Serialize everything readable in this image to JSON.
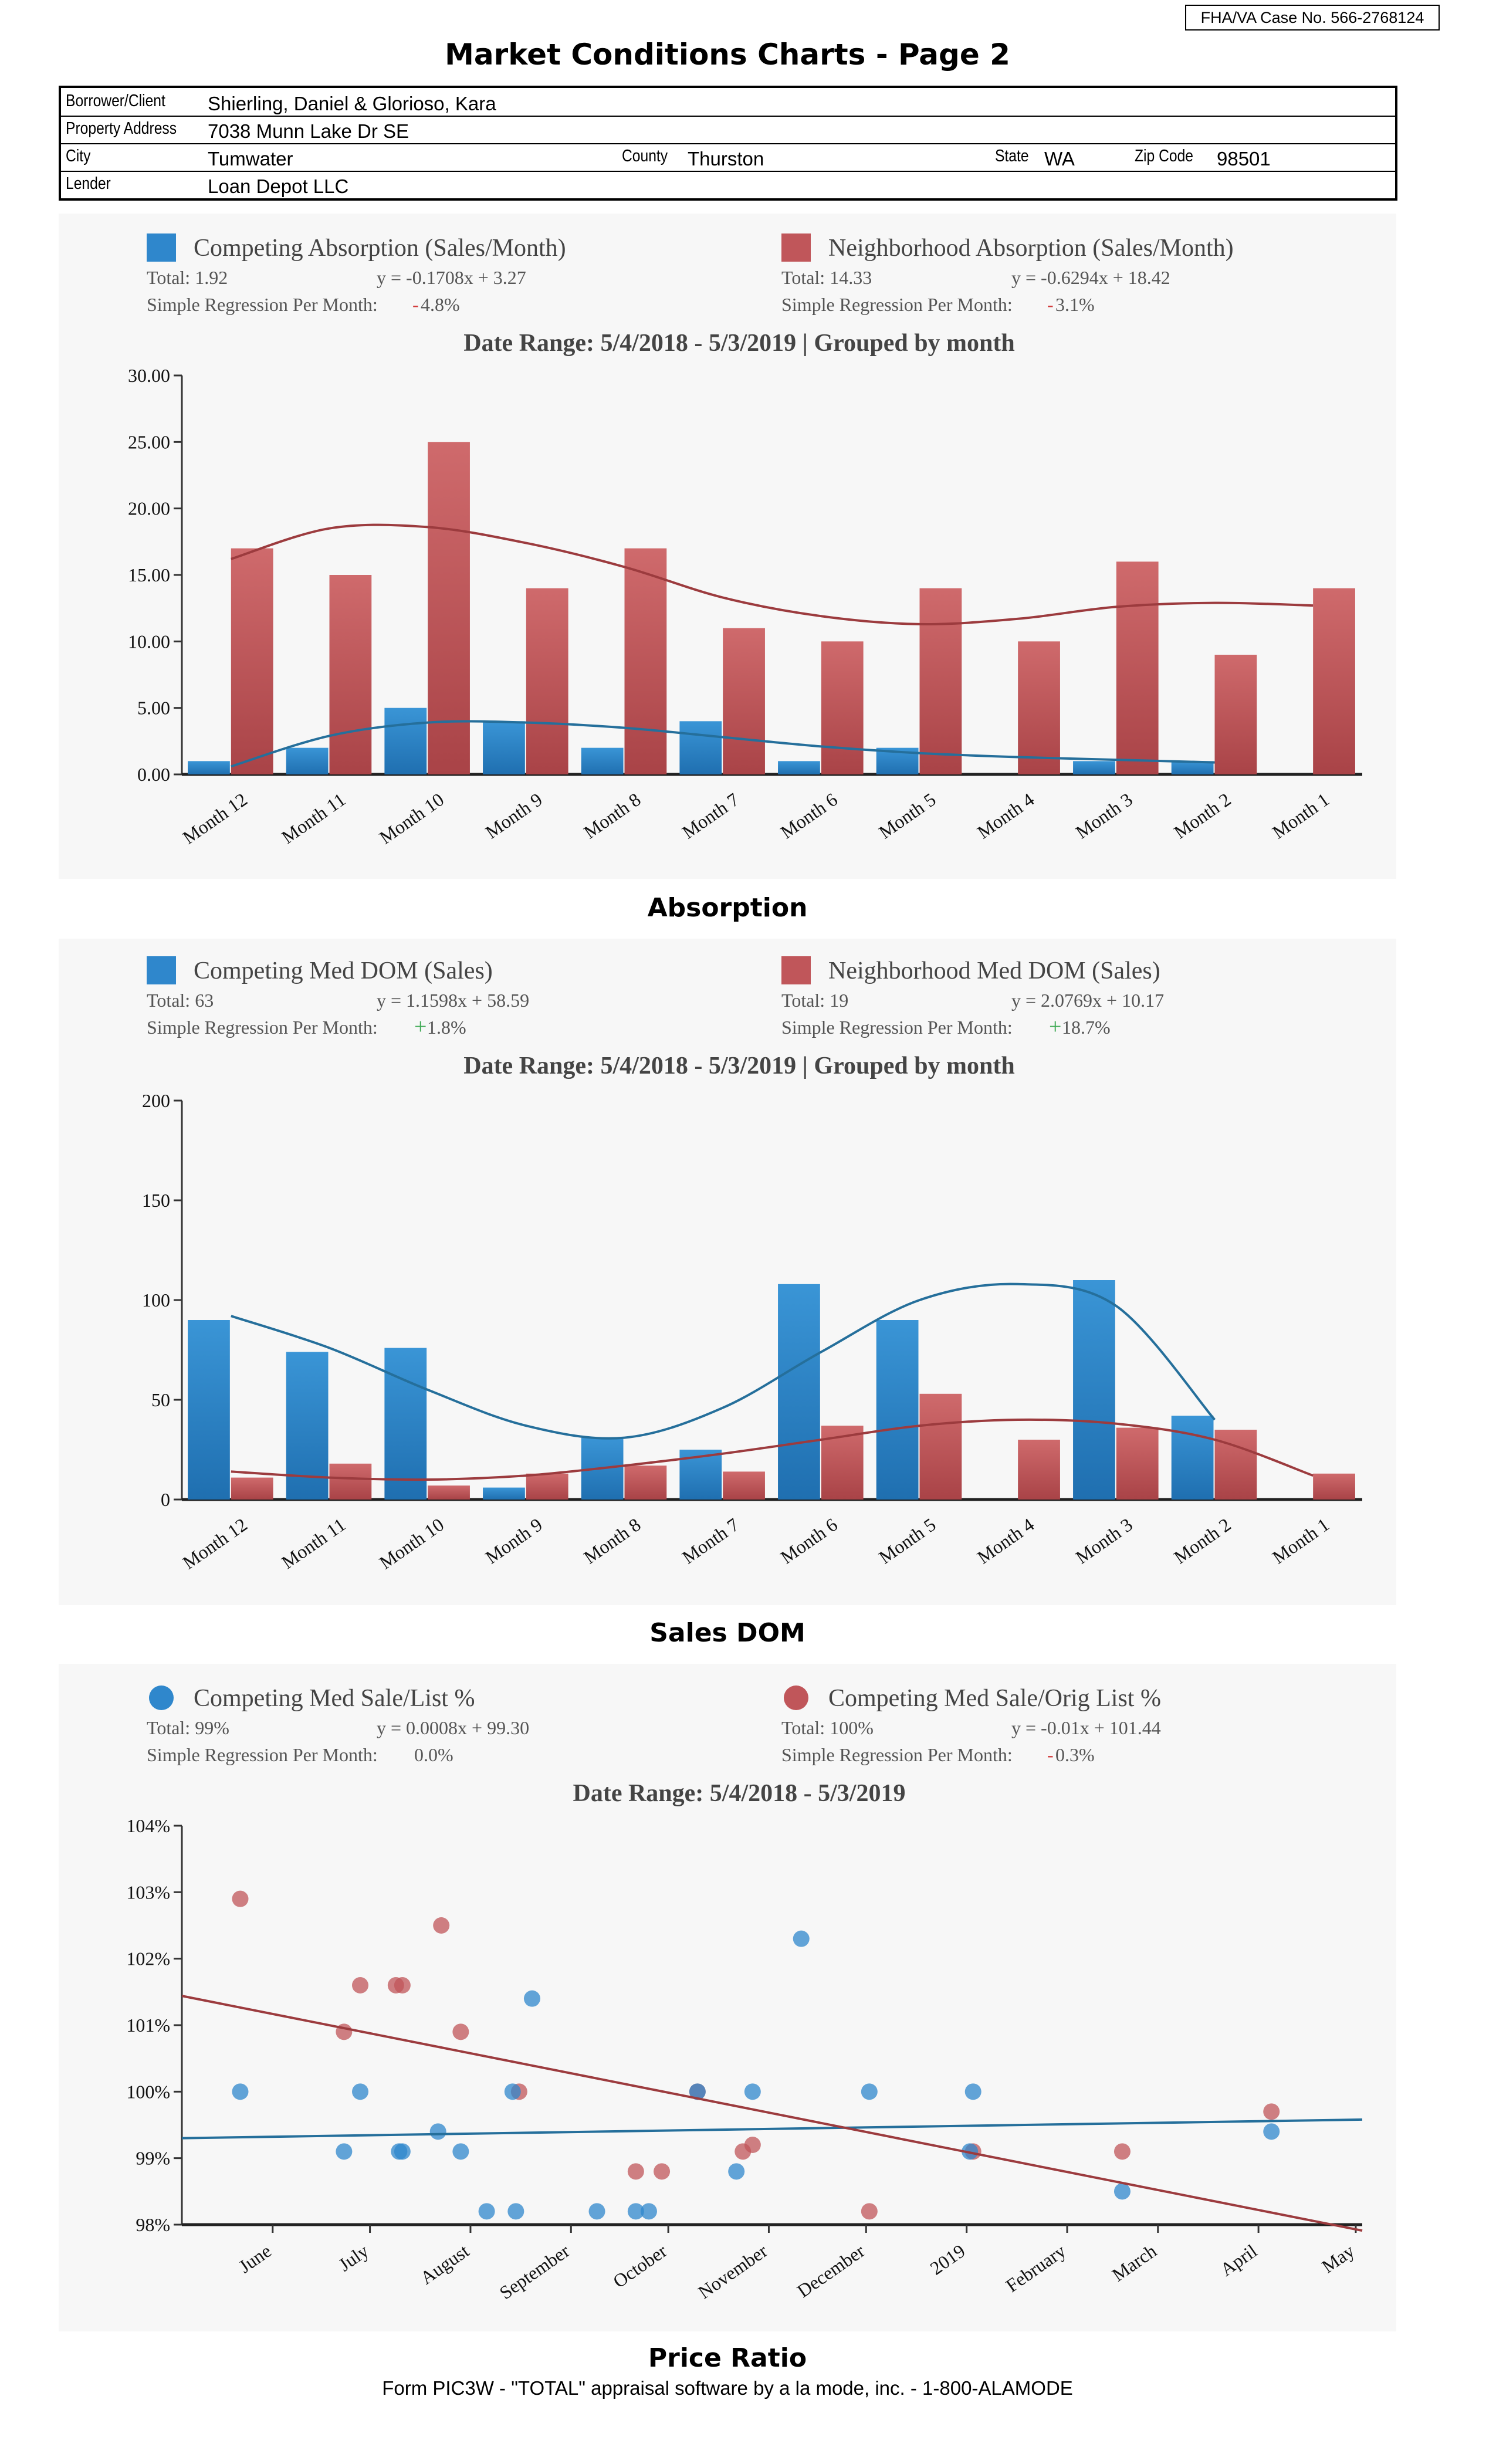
{
  "header": {
    "case_no": "FHA/VA Case No. 566-2768124",
    "title": "Market Conditions Charts - Page 2"
  },
  "subject": {
    "borrower_label": "Borrower/Client",
    "borrower": "Shierling, Daniel & Glorioso, Kara",
    "address_label": "Property Address",
    "address": "7038 Munn Lake Dr SE",
    "city_label": "City",
    "city": "Tumwater",
    "county_label": "County",
    "county": "Thurston",
    "state_label": "State",
    "state": "WA",
    "zip_label": "Zip Code",
    "zip": "98501",
    "lender_label": "Lender",
    "lender": "Loan Depot LLC"
  },
  "colors": {
    "blue": "#2f87cc",
    "red": "#c0565a",
    "blue_line": "#256f9b",
    "red_line": "#9c3b3e",
    "panel": "#f7f7f7"
  },
  "footer": "Form PIC3W - \"TOTAL\" appraisal software by a la mode, inc. - 1-800-ALAMODE",
  "chart_data": [
    {
      "type": "bar",
      "section_title": "Absorption",
      "date_range": "Date Range: 5/4/2018 - 5/3/2019 | Grouped by month",
      "categories": [
        "Month 12",
        "Month 11",
        "Month 10",
        "Month 9",
        "Month 8",
        "Month 7",
        "Month 6",
        "Month 5",
        "Month 4",
        "Month 3",
        "Month 2",
        "Month 1"
      ],
      "ylim": [
        0,
        30
      ],
      "yticks": [
        "0.00",
        "5.00",
        "10.00",
        "15.00",
        "20.00",
        "25.00",
        "30.00"
      ],
      "legend_placement": "top",
      "series": [
        {
          "name": "Competing Absorption (Sales/Month)",
          "total": "Total: 1.92",
          "equation": "y = -0.1708x + 3.27",
          "regression_label": "Simple Regression Per Month:",
          "regression_sign": "-",
          "regression_value": "4.8%",
          "values": [
            1,
            2,
            5,
            4,
            2,
            4,
            1,
            2,
            0,
            1,
            1,
            0
          ],
          "trend": [
            0.6,
            2.9,
            3.9,
            3.9,
            3.5,
            2.8,
            2.1,
            1.6,
            1.3,
            1.1,
            0.9,
            null
          ]
        },
        {
          "name": "Neighborhood Absorption (Sales/Month)",
          "total": "Total: 14.33",
          "equation": "y = -0.6294x + 18.42",
          "regression_label": "Simple Regression Per Month:",
          "regression_sign": "-",
          "regression_value": "3.1%",
          "values": [
            17,
            15,
            25,
            14,
            17,
            11,
            10,
            14,
            10,
            16,
            9,
            14
          ],
          "trend": [
            16.2,
            18.5,
            18.6,
            17.4,
            15.6,
            13.3,
            11.9,
            11.3,
            11.7,
            12.6,
            12.9,
            12.7
          ]
        }
      ]
    },
    {
      "type": "bar",
      "section_title": "Sales DOM",
      "date_range": "Date Range: 5/4/2018 - 5/3/2019 | Grouped by month",
      "categories": [
        "Month 12",
        "Month 11",
        "Month 10",
        "Month 9",
        "Month 8",
        "Month 7",
        "Month 6",
        "Month 5",
        "Month 4",
        "Month 3",
        "Month 2",
        "Month 1"
      ],
      "ylim": [
        0,
        200
      ],
      "yticks": [
        "0",
        "50",
        "100",
        "150",
        "200"
      ],
      "legend_placement": "top",
      "series": [
        {
          "name": "Competing Med DOM (Sales)",
          "total": "Total: 63",
          "equation": "y = 1.1598x + 58.59",
          "regression_label": "Simple Regression Per Month:",
          "regression_sign": "+",
          "regression_value": "1.8%",
          "values": [
            90,
            74,
            76,
            6,
            31,
            25,
            108,
            90,
            0,
            110,
            42,
            0
          ],
          "trend": [
            92,
            76,
            55,
            37,
            31,
            46,
            74,
            100,
            108,
            97,
            40,
            null
          ]
        },
        {
          "name": "Neighborhood Med DOM (Sales)",
          "total": "Total: 19",
          "equation": "y = 2.0769x + 10.17",
          "regression_label": "Simple Regression Per Month:",
          "regression_sign": "+",
          "regression_value": "18.7%",
          "values": [
            11,
            18,
            7,
            13,
            17,
            14,
            37,
            53,
            30,
            36,
            35,
            13
          ],
          "trend": [
            14,
            11,
            10,
            12,
            17,
            23,
            30,
            37,
            40,
            38,
            30,
            12
          ]
        }
      ]
    },
    {
      "type": "scatter",
      "section_title": "Price Ratio",
      "date_range": "Date Range: 5/4/2018 - 5/3/2019",
      "ylim": [
        98,
        104
      ],
      "yticks": [
        "98%",
        "99%",
        "100%",
        "101%",
        "102%",
        "103%",
        "104%"
      ],
      "xlim": [
        "2018-05-04",
        "2019-05-03"
      ],
      "xticks": [
        {
          "label": "June",
          "date": "2018-06-01"
        },
        {
          "label": "July",
          "date": "2018-07-01"
        },
        {
          "label": "August",
          "date": "2018-08-01"
        },
        {
          "label": "September",
          "date": "2018-09-01"
        },
        {
          "label": "October",
          "date": "2018-10-01"
        },
        {
          "label": "November",
          "date": "2018-11-01"
        },
        {
          "label": "December",
          "date": "2018-12-01"
        },
        {
          "label": "2019",
          "date": "2019-01-01"
        },
        {
          "label": "February",
          "date": "2019-02-01"
        },
        {
          "label": "March",
          "date": "2019-03-01"
        },
        {
          "label": "April",
          "date": "2019-04-01"
        },
        {
          "label": "May",
          "date": "2019-05-01"
        }
      ],
      "legend_placement": "top",
      "series": [
        {
          "name": "Competing Med Sale/List %",
          "total": "Total: 99%",
          "equation": "y = 0.0008x + 99.30",
          "regression_label": "Simple Regression Per Month:",
          "regression_sign": "",
          "regression_value": "0.0%",
          "trend": [
            99.3,
            99.58
          ],
          "points": [
            [
              "2018-05-22",
              100.0
            ],
            [
              "2018-06-23",
              99.1
            ],
            [
              "2018-06-28",
              100.0
            ],
            [
              "2018-07-10",
              99.1
            ],
            [
              "2018-07-11",
              99.1
            ],
            [
              "2018-07-22",
              99.4
            ],
            [
              "2018-07-29",
              99.1
            ],
            [
              "2018-08-06",
              98.2
            ],
            [
              "2018-08-14",
              100.0
            ],
            [
              "2018-08-15",
              98.2
            ],
            [
              "2018-08-20",
              101.4
            ],
            [
              "2018-09-09",
              98.2
            ],
            [
              "2018-09-21",
              98.2
            ],
            [
              "2018-09-25",
              98.2
            ],
            [
              "2018-10-10",
              100.0
            ],
            [
              "2018-10-22",
              98.8
            ],
            [
              "2018-10-27",
              100.0
            ],
            [
              "2018-11-11",
              102.3
            ],
            [
              "2018-12-02",
              100.0
            ],
            [
              "2019-01-02",
              99.1
            ],
            [
              "2019-01-03",
              100.0
            ],
            [
              "2019-02-18",
              98.5
            ],
            [
              "2019-04-05",
              99.4
            ]
          ]
        },
        {
          "name": "Competing Med Sale/Orig List %",
          "total": "Total: 100%",
          "equation": "y = -0.01x + 101.44",
          "regression_label": "Simple Regression Per Month:",
          "regression_sign": "-",
          "regression_value": "0.3%",
          "trend": [
            101.44,
            97.91
          ],
          "points": [
            [
              "2018-05-22",
              102.9
            ],
            [
              "2018-06-23",
              100.9
            ],
            [
              "2018-06-28",
              101.6
            ],
            [
              "2018-07-09",
              101.6
            ],
            [
              "2018-07-11",
              101.6
            ],
            [
              "2018-07-23",
              102.5
            ],
            [
              "2018-07-29",
              100.9
            ],
            [
              "2018-08-16",
              100.0
            ],
            [
              "2018-09-21",
              98.8
            ],
            [
              "2018-09-29",
              98.8
            ],
            [
              "2018-10-10",
              100.0
            ],
            [
              "2018-10-24",
              99.1
            ],
            [
              "2018-10-27",
              99.2
            ],
            [
              "2018-12-02",
              98.2
            ],
            [
              "2019-01-03",
              99.1
            ],
            [
              "2019-02-18",
              99.1
            ],
            [
              "2019-04-05",
              99.7
            ]
          ]
        }
      ]
    }
  ]
}
